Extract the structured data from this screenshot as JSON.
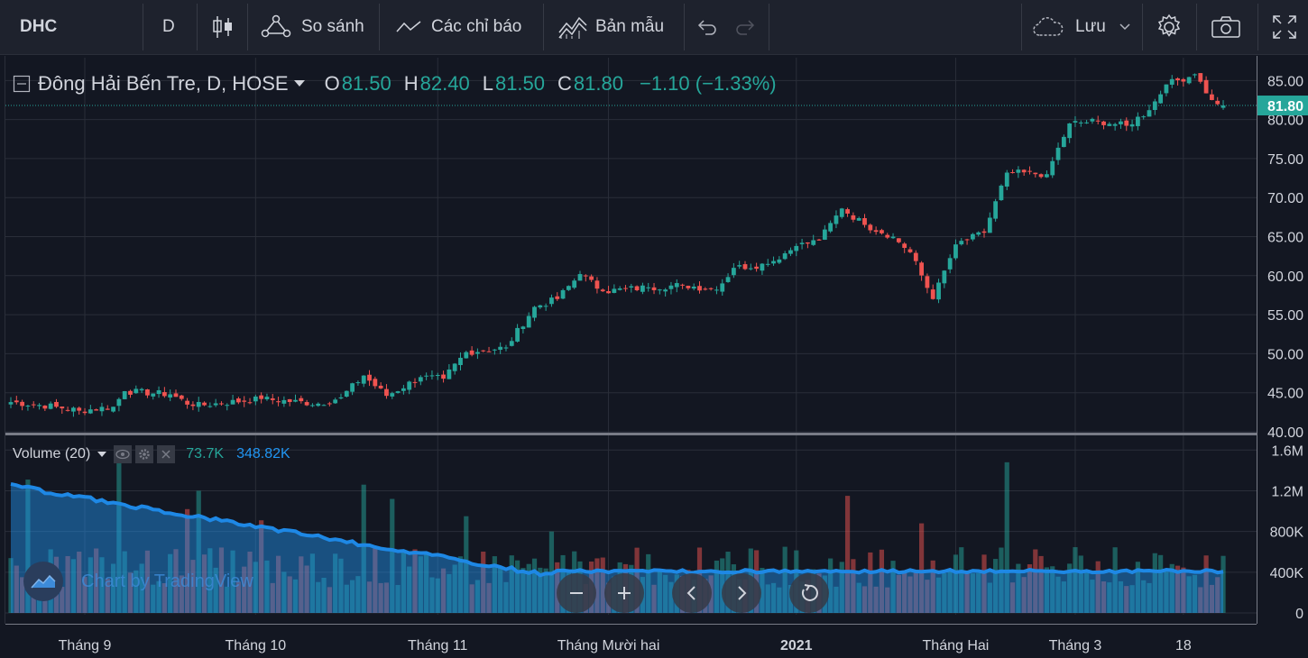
{
  "toolbar": {
    "symbol": "DHC",
    "interval": "D",
    "compare_label": "So sánh",
    "indicators_label": "Các chỉ báo",
    "templates_label": "Bản mẫu",
    "save_label": "Lưu",
    "icons": [
      "candles-icon",
      "compare-icon",
      "indicators-icon",
      "templates-icon",
      "undo-icon",
      "redo-icon",
      "cloud-icon",
      "chevron-down-icon",
      "gear-icon",
      "camera-icon",
      "fullscreen-icon"
    ]
  },
  "legend": {
    "title": "Đông Hải Bến Tre, D, HOSE",
    "o_label": "O",
    "o_value": "81.50",
    "h_label": "H",
    "h_value": "82.40",
    "l_label": "L",
    "l_value": "81.50",
    "c_label": "C",
    "c_value": "81.80",
    "change": "−1.10 (−1.33%)"
  },
  "volume_legend": {
    "label": "Volume (20)",
    "value1": "73.7K",
    "value2": "348.82K"
  },
  "last_price_label": "81.80",
  "watermark": "Chart by TradingView",
  "colors": {
    "up": "#26a69a",
    "down": "#ef5350",
    "volume_ma": "#1e88e5",
    "background": "#131722",
    "grid": "#2a2e39"
  },
  "chart_data": [
    {
      "type": "candlestick",
      "ylim": [
        40,
        87
      ],
      "yticks": [
        "85.00",
        "80.00",
        "75.00",
        "70.00",
        "65.00",
        "60.00",
        "55.00",
        "50.00",
        "45.00",
        "40.00"
      ],
      "xticks": [
        "Tháng 9",
        "Tháng 10",
        "Tháng 11",
        "Tháng Mười hai",
        "2021",
        "Tháng Hai",
        "Tháng 3",
        "18"
      ],
      "last_price": 81.8,
      "anchors": [
        {
          "i": 0,
          "c": 43.8
        },
        {
          "i": 8,
          "c": 43.2
        },
        {
          "i": 12,
          "c": 42.7
        },
        {
          "i": 18,
          "c": 43.2
        },
        {
          "i": 20,
          "c": 45.2
        },
        {
          "i": 28,
          "c": 44.8
        },
        {
          "i": 32,
          "c": 43.3
        },
        {
          "i": 44,
          "c": 44.2
        },
        {
          "i": 54,
          "c": 43.6
        },
        {
          "i": 58,
          "c": 44.4
        },
        {
          "i": 62,
          "c": 47.2
        },
        {
          "i": 66,
          "c": 44.6
        },
        {
          "i": 72,
          "c": 47.0
        },
        {
          "i": 76,
          "c": 46.8
        },
        {
          "i": 80,
          "c": 50.2
        },
        {
          "i": 87,
          "c": 50.8
        },
        {
          "i": 92,
          "c": 56.0
        },
        {
          "i": 96,
          "c": 57.0
        },
        {
          "i": 100,
          "c": 60.2
        },
        {
          "i": 104,
          "c": 58.0
        },
        {
          "i": 112,
          "c": 58.5
        },
        {
          "i": 118,
          "c": 58.8
        },
        {
          "i": 124,
          "c": 58.2
        },
        {
          "i": 127,
          "c": 61.0
        },
        {
          "i": 133,
          "c": 61.5
        },
        {
          "i": 138,
          "c": 63.8
        },
        {
          "i": 142,
          "c": 64.5
        },
        {
          "i": 146,
          "c": 68.6
        },
        {
          "i": 150,
          "c": 66.5
        },
        {
          "i": 155,
          "c": 65.0
        },
        {
          "i": 158,
          "c": 63.0
        },
        {
          "i": 162,
          "c": 57.0
        },
        {
          "i": 166,
          "c": 64.0
        },
        {
          "i": 171,
          "c": 65.5
        },
        {
          "i": 175,
          "c": 73.2
        },
        {
          "i": 182,
          "c": 73.0
        },
        {
          "i": 186,
          "c": 79.5
        },
        {
          "i": 191,
          "c": 79.8
        },
        {
          "i": 196,
          "c": 79.2
        },
        {
          "i": 200,
          "c": 81.2
        },
        {
          "i": 203,
          "c": 84.5
        },
        {
          "i": 208,
          "c": 85.8
        },
        {
          "i": 211,
          "c": 82.5
        },
        {
          "i": 213,
          "c": 81.8
        }
      ]
    },
    {
      "type": "bar",
      "name": "Volume (20)",
      "ylim": [
        0,
        1700000
      ],
      "yticks": [
        "1.6M",
        "1.2M",
        "800K",
        "400K",
        "0"
      ],
      "spikes": [
        {
          "i": 3,
          "v": 1310000
        },
        {
          "i": 19,
          "v": 1480000
        },
        {
          "i": 31,
          "v": 1020000
        },
        {
          "i": 33,
          "v": 1200000
        },
        {
          "i": 44,
          "v": 910000
        },
        {
          "i": 62,
          "v": 1260000
        },
        {
          "i": 67,
          "v": 1120000
        },
        {
          "i": 80,
          "v": 950000
        },
        {
          "i": 95,
          "v": 800000
        },
        {
          "i": 136,
          "v": 650000
        },
        {
          "i": 147,
          "v": 1150000
        },
        {
          "i": 160,
          "v": 880000
        },
        {
          "i": 175,
          "v": 1480000
        },
        {
          "i": 204,
          "v": 480000
        }
      ],
      "ma_start": 1250000,
      "ma_end": 350000
    }
  ]
}
